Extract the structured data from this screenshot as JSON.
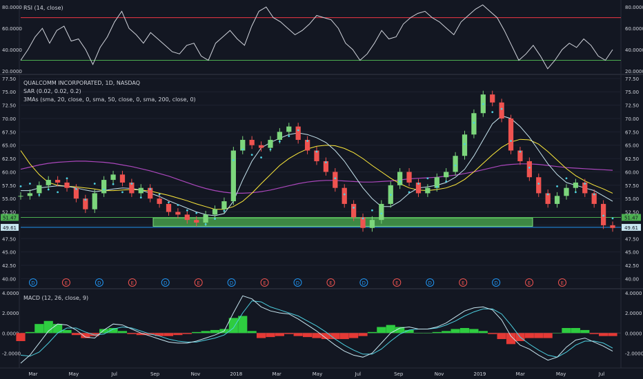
{
  "chart_data": [
    {
      "panel": "rsi",
      "type": "line",
      "label": "RSI (14, close)",
      "y_ticks": [
        "80.0000",
        "60.0000",
        "40.0000",
        "20.0000"
      ],
      "ylim": [
        18,
        84
      ],
      "levels": [
        {
          "value": 70,
          "color": "#f23645"
        },
        {
          "value": 30,
          "color": "#4caf50"
        }
      ],
      "values": [
        30,
        40,
        52,
        60,
        46,
        58,
        62,
        48,
        50,
        40,
        26,
        42,
        52,
        66,
        76,
        60,
        54,
        46,
        56,
        50,
        44,
        38,
        36,
        44,
        46,
        34,
        30,
        46,
        52,
        58,
        50,
        44,
        62,
        76,
        80,
        70,
        66,
        60,
        54,
        58,
        64,
        72,
        70,
        68,
        60,
        46,
        40,
        30,
        36,
        46,
        58,
        50,
        52,
        64,
        70,
        74,
        76,
        70,
        66,
        60,
        54,
        66,
        72,
        78,
        82,
        76,
        70,
        58,
        44,
        30,
        36,
        44,
        34,
        22,
        30,
        40,
        46,
        42,
        50,
        44,
        34,
        30,
        40
      ],
      "color": "#d1d4dc"
    },
    {
      "panel": "price",
      "type": "candlestick",
      "title": "QUALCOMM INCORPORATED, 1D, NASDAQ",
      "legend": [
        "SAR (0.02, 0.02, 0.2)",
        "3MAs (sma, 20, close, 0, sma, 50, close, 0, sma, 200, close, 0)"
      ],
      "y_ticks": [
        "77.50",
        "75.00",
        "72.50",
        "70.00",
        "67.50",
        "65.00",
        "62.50",
        "60.00",
        "57.50",
        "55.00",
        "52.50",
        "50.00",
        "47.50",
        "45.00",
        "42.50",
        "40.00"
      ],
      "ylim": [
        38.5,
        78
      ],
      "closes": [
        55.5,
        56,
        57.5,
        58.5,
        58,
        57,
        55,
        53,
        56,
        58.5,
        59.5,
        58,
        56,
        57,
        55,
        54,
        52.5,
        52,
        51,
        50.5,
        52,
        53,
        54.5,
        64,
        66,
        65,
        64.5,
        66,
        67.5,
        68.5,
        66,
        64,
        62,
        60,
        57,
        54,
        51.5,
        49.5,
        51,
        54,
        57.5,
        60,
        58,
        56,
        57,
        59,
        60,
        63,
        67,
        71,
        74.5,
        73,
        70,
        64,
        62,
        59,
        56,
        54,
        55.5,
        57,
        58,
        56,
        54,
        50,
        49.5
      ],
      "ma20": [
        56.5,
        56.5,
        57,
        57.2,
        57.4,
        57.3,
        57,
        56.6,
        56.3,
        56.5,
        56.8,
        57,
        56.9,
        56.6,
        56,
        55.4,
        54.6,
        53.9,
        53.2,
        52.5,
        52,
        51.8,
        52.2,
        54.5,
        58.5,
        62,
        64.5,
        65.5,
        66.3,
        67,
        67.3,
        67,
        66.4,
        65.5,
        64,
        62,
        59.5,
        57,
        55,
        53.5,
        53.5,
        54.5,
        56,
        57,
        57.2,
        57.5,
        58,
        59,
        60.5,
        63,
        66,
        69,
        70.5,
        70,
        68.5,
        66.5,
        64,
        61.5,
        59.5,
        58,
        57.5,
        57,
        56.5,
        55.5,
        54.5
      ],
      "ma50": [
        64,
        61.5,
        59.5,
        58,
        57.5,
        57.3,
        57.2,
        57,
        56.8,
        56.5,
        56.5,
        56.6,
        56.7,
        56.6,
        56.4,
        56,
        55.6,
        55.1,
        54.6,
        54,
        53.5,
        53,
        53,
        53.5,
        54.5,
        56,
        57.8,
        59.5,
        61.2,
        62.5,
        63.5,
        64.3,
        64.8,
        65,
        64.9,
        64.4,
        63.6,
        62.5,
        61.2,
        60,
        58.8,
        57.8,
        57,
        56.6,
        56.5,
        56.7,
        57,
        57.6,
        58.6,
        60,
        61.6,
        63.2,
        64.6,
        65.6,
        66.1,
        66,
        65.2,
        63.8,
        62.2,
        60.6,
        59.3,
        58.3,
        57.5,
        56.8,
        56
      ],
      "ma200": [
        60.5,
        60.9,
        61.3,
        61.6,
        61.8,
        61.9,
        62,
        62,
        61.9,
        61.8,
        61.6,
        61.3,
        61,
        60.6,
        60.2,
        59.7,
        59.2,
        58.6,
        58,
        57.4,
        56.9,
        56.5,
        56.2,
        56,
        56,
        56.1,
        56.3,
        56.6,
        57,
        57.4,
        57.8,
        58.1,
        58.3,
        58.4,
        58.4,
        58.3,
        58.2,
        58.1,
        58.1,
        58.2,
        58.3,
        58.5,
        58.7,
        58.8,
        58.9,
        59,
        59.2,
        59.4,
        59.7,
        60,
        60.4,
        60.8,
        61.2,
        61.4,
        61.5,
        61.5,
        61.4,
        61.2,
        61,
        60.8,
        60.7,
        60.6,
        60.5,
        60.4,
        60.3
      ],
      "zone": {
        "from": 49.8,
        "to": 51.4,
        "color": "#4caf50"
      },
      "levels": [
        {
          "value": 51.47,
          "color": "#4caf50"
        },
        {
          "value": 49.61,
          "color": "#2196f3"
        }
      ],
      "price_badges": [
        {
          "text": "51.47",
          "value": 51.47,
          "color": "#4caf50"
        },
        {
          "text": "49.61",
          "value": 49.61,
          "color": "#c8e6f0"
        }
      ],
      "events": [
        {
          "label": "D",
          "x": "Mar"
        },
        {
          "label": "E",
          "x": "May"
        },
        {
          "label": "D",
          "x": "May"
        },
        {
          "label": "E",
          "x": "Jul"
        },
        {
          "label": "D",
          "x": "Sep"
        },
        {
          "label": "E",
          "x": "Nov"
        },
        {
          "label": "D",
          "x": "Nov"
        },
        {
          "label": "E",
          "x": "2018"
        },
        {
          "label": "D",
          "x": "Mar"
        },
        {
          "label": "E",
          "x": "May"
        },
        {
          "label": "D",
          "x": "May"
        },
        {
          "label": "E",
          "x": "Jul"
        },
        {
          "label": "D",
          "x": "Sep"
        },
        {
          "label": "E",
          "x": "Nov"
        },
        {
          "label": "D",
          "x": "Nov"
        },
        {
          "label": "E",
          "x": "2019"
        },
        {
          "label": "E",
          "x": "May"
        }
      ]
    },
    {
      "panel": "macd",
      "type": "histogram+line",
      "label": "MACD (12, 26, close, 9)",
      "y_ticks": [
        "4.0000",
        "2.0000",
        "0.0000",
        "-2.0000"
      ],
      "ylim": [
        -3.2,
        4.2
      ],
      "macd": [
        -3,
        -2.2,
        -1,
        0.2,
        0.9,
        0.8,
        0.3,
        -0.4,
        -0.5,
        0.3,
        0.9,
        0.8,
        0.4,
        0,
        -0.3,
        -0.6,
        -0.9,
        -1,
        -1,
        -0.8,
        -0.5,
        -0.2,
        0.2,
        2,
        3.7,
        3.4,
        2.6,
        2.2,
        2,
        1.9,
        1.4,
        0.8,
        0.2,
        -0.5,
        -1.2,
        -1.8,
        -2.2,
        -2.4,
        -2,
        -1,
        0,
        0.5,
        0.6,
        0.4,
        0.4,
        0.6,
        1,
        1.6,
        2.2,
        2.5,
        2.6,
        2.3,
        1.3,
        -0.3,
        -1.2,
        -1.6,
        -2.2,
        -2.7,
        -2.4,
        -1.4,
        -0.7,
        -0.5,
        -0.9,
        -1.3,
        -1.8
      ],
      "signal": [
        -2.2,
        -2.3,
        -1.9,
        -1,
        0,
        0.5,
        0.5,
        0.1,
        -0.2,
        -0.1,
        0.4,
        0.6,
        0.5,
        0.2,
        -0.1,
        -0.3,
        -0.6,
        -0.8,
        -0.9,
        -0.9,
        -0.7,
        -0.5,
        -0.2,
        0.5,
        2,
        3.2,
        3.1,
        2.6,
        2.3,
        2,
        1.7,
        1.2,
        0.7,
        0.1,
        -0.6,
        -1.2,
        -1.7,
        -2.1,
        -2.1,
        -1.6,
        -0.8,
        -0.1,
        0.3,
        0.4,
        0.4,
        0.5,
        0.8,
        1.2,
        1.7,
        2.1,
        2.4,
        2.4,
        1.9,
        0.8,
        -0.4,
        -1.1,
        -1.7,
        -2.2,
        -2.4,
        -1.9,
        -1.2,
        -0.8,
        -0.8,
        -1,
        -1.5
      ]
    }
  ],
  "x_axis": {
    "labels": [
      "Mar",
      "May",
      "Jul",
      "Sep",
      "Nov",
      "2018",
      "Mar",
      "May",
      "Jul",
      "Sep",
      "Nov",
      "2019",
      "Mar",
      "May",
      "Jul"
    ]
  },
  "colors": {
    "background": "#131722",
    "up": "#26a69a",
    "up_candle": "#7cd67c",
    "down": "#ef5350",
    "sar": "#4dd0e1",
    "ma20": "#c8e6f0",
    "ma50": "#ffeb3b",
    "ma200": "#ab47bc",
    "macd_line": "#c8e6f0",
    "signal_line": "#4dd0e1",
    "hist_up": "#2ecc40",
    "hist_down": "#e53935",
    "grid": "#1e2230",
    "axis_text": "#d1d4dc",
    "event_d": "#2196f3",
    "event_e": "#ef5350"
  }
}
